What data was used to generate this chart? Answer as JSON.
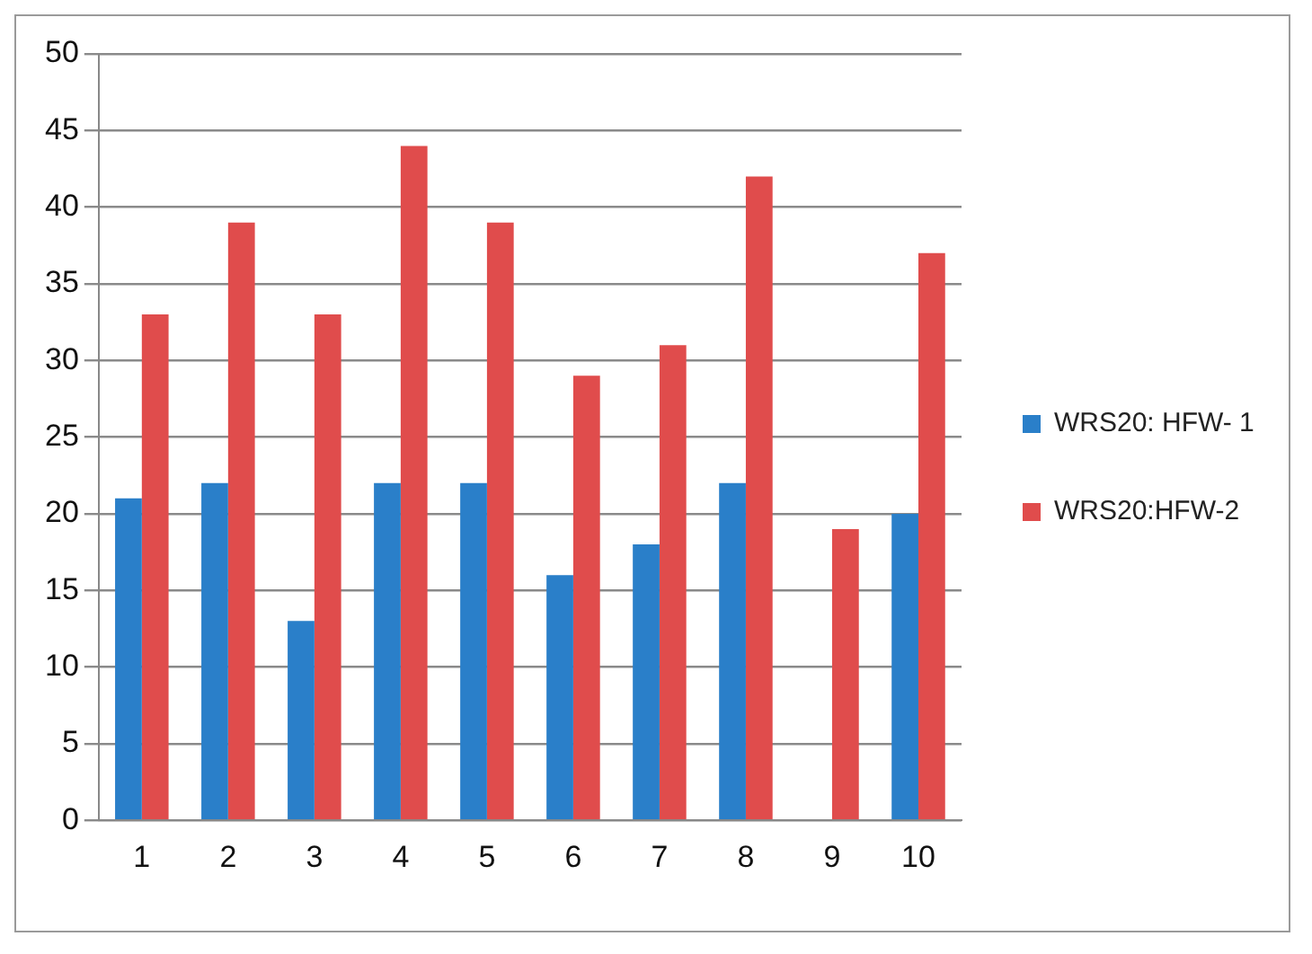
{
  "chart_data": {
    "type": "bar",
    "categories": [
      "1",
      "2",
      "3",
      "4",
      "5",
      "6",
      "7",
      "8",
      "9",
      "10"
    ],
    "series": [
      {
        "name": "WRS20: HFW- 1",
        "color": "#2a7fc9",
        "values": [
          21,
          22,
          13,
          22,
          22,
          16,
          18,
          22,
          null,
          20
        ]
      },
      {
        "name": "WRS20:HFW-2",
        "color": "#e04c4c",
        "values": [
          33,
          39,
          33,
          44,
          39,
          29,
          31,
          42,
          19,
          37
        ]
      }
    ],
    "ylim": [
      0,
      50
    ],
    "yticks": [
      0,
      5,
      10,
      15,
      20,
      25,
      30,
      35,
      40,
      45,
      50
    ],
    "grid": "y",
    "legend": "right"
  }
}
